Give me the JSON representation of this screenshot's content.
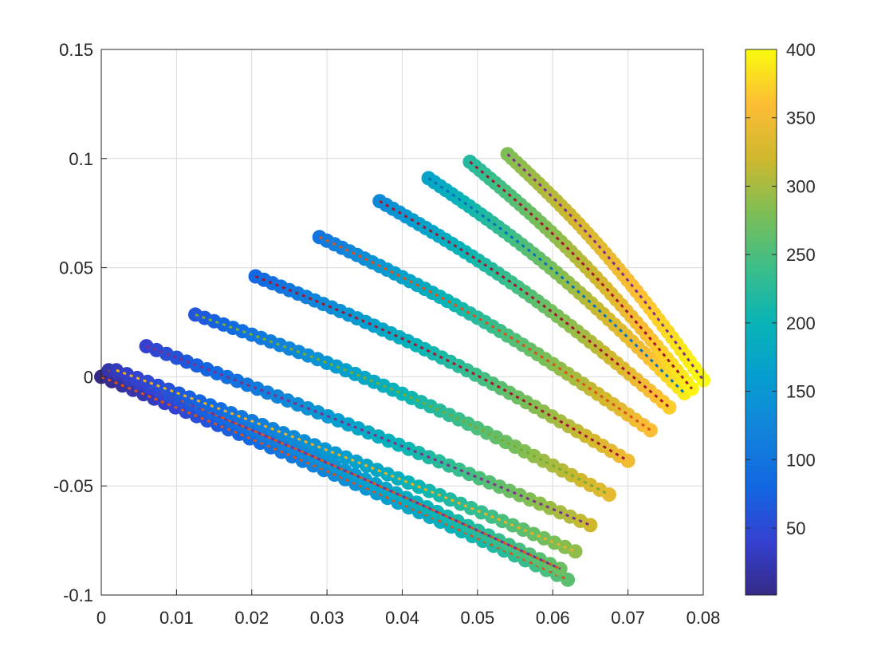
{
  "chart_data": {
    "type": "scatter",
    "title": "",
    "xlabel": "",
    "ylabel": "",
    "xlim": [
      0,
      0.08
    ],
    "ylim": [
      -0.1,
      0.15
    ],
    "xticks": [
      "0",
      "0.01",
      "0.02",
      "0.03",
      "0.04",
      "0.05",
      "0.06",
      "0.07",
      "0.08"
    ],
    "yticks": [
      "-0.1",
      "-0.05",
      "0",
      "0.05",
      "0.1",
      "0.15"
    ],
    "grid": true,
    "colorbar": {
      "ticks": [
        "50",
        "100",
        "150",
        "200",
        "250",
        "300",
        "350",
        "400"
      ],
      "range": [
        1,
        400
      ],
      "colormap": "parula"
    },
    "series": [
      {
        "start": [
          0.0,
          0.0
        ],
        "end": [
          0.062,
          -0.093
        ],
        "c_start": 1,
        "c_end": 260,
        "dash_colors": [
          "#D95319"
        ]
      },
      {
        "start": [
          0.001,
          0.003
        ],
        "end": [
          0.061,
          -0.088
        ],
        "c_start": 20,
        "c_end": 270,
        "dash_colors": [
          "#D95319",
          "#7E2F8E"
        ]
      },
      {
        "start": [
          0.002,
          0.003
        ],
        "end": [
          0.063,
          -0.08
        ],
        "c_start": 30,
        "c_end": 290,
        "dash_colors": [
          "#EDB120"
        ]
      },
      {
        "start": [
          0.006,
          0.014
        ],
        "end": [
          0.065,
          -0.068
        ],
        "c_start": 40,
        "c_end": 320,
        "dash_colors": [
          "#7E2F8E"
        ]
      },
      {
        "start": [
          0.0125,
          0.0285
        ],
        "end": [
          0.0675,
          -0.054
        ],
        "c_start": 60,
        "c_end": 340,
        "dash_colors": [
          "#77AC30"
        ]
      },
      {
        "start": [
          0.0205,
          0.046
        ],
        "end": [
          0.07,
          -0.0385
        ],
        "c_start": 80,
        "c_end": 350,
        "dash_colors": [
          "#A2142F"
        ]
      },
      {
        "start": [
          0.029,
          0.064
        ],
        "end": [
          0.073,
          -0.0245
        ],
        "c_start": 100,
        "c_end": 360,
        "dash_colors": [
          "#D95319"
        ]
      },
      {
        "start": [
          0.037,
          0.0805
        ],
        "end": [
          0.0755,
          -0.014
        ],
        "c_start": 130,
        "c_end": 370,
        "dash_colors": [
          "#A2142F"
        ]
      },
      {
        "start": [
          0.0435,
          0.091
        ],
        "end": [
          0.0775,
          -0.0075
        ],
        "c_start": 170,
        "c_end": 390,
        "dash_colors": [
          "#0072BD"
        ]
      },
      {
        "start": [
          0.049,
          0.0985
        ],
        "end": [
          0.0785,
          -0.0055
        ],
        "c_start": 220,
        "c_end": 395,
        "dash_colors": [
          "#A2142F"
        ]
      },
      {
        "start": [
          0.054,
          0.102
        ],
        "end": [
          0.08,
          -0.0015
        ],
        "c_start": 280,
        "c_end": 400,
        "dash_colors": [
          "#7E2F8E"
        ]
      }
    ]
  }
}
